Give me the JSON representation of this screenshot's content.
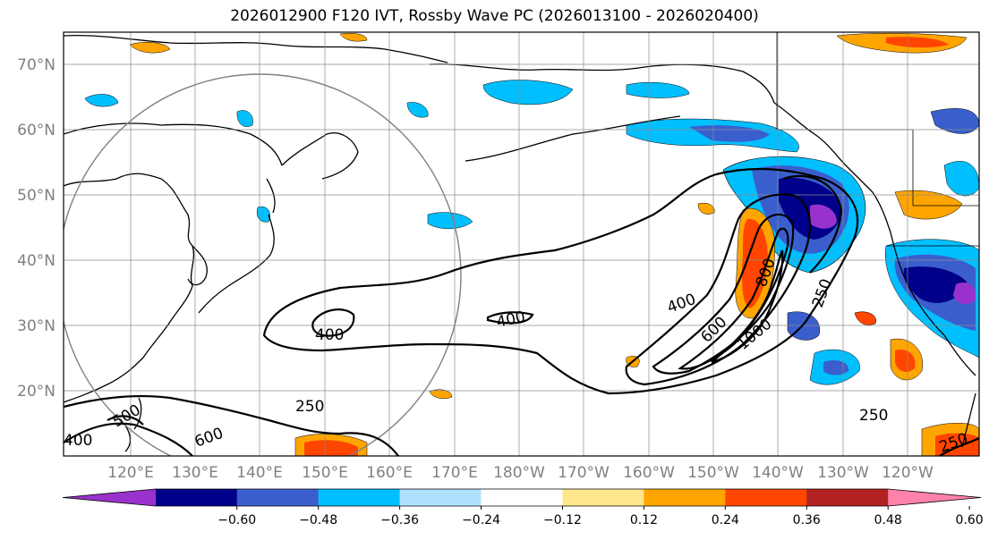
{
  "title": "2026012900 F120 IVT, Rossby Wave PC (2026013100 - 2026020400)",
  "lat_labels": [
    "70°N",
    "60°N",
    "50°N",
    "40°N",
    "30°N",
    "20°N"
  ],
  "lon_labels": [
    "120°E",
    "130°E",
    "140°E",
    "150°E",
    "160°E",
    "170°E",
    "180°W",
    "170°W",
    "160°W",
    "150°W",
    "140°W",
    "130°W",
    "120°W"
  ],
  "colorbar": {
    "colors": [
      "#9932cc",
      "#00008b",
      "#3a5fcd",
      "#00bfff",
      "#b0e2ff",
      "#ffffff",
      "#ffe68a",
      "#ffa500",
      "#ff4500",
      "#b22222",
      "#ff82ab"
    ],
    "tick_labels": [
      "−0.60",
      "−0.48",
      "−0.36",
      "−0.24",
      "−0.12",
      "0.12",
      "0.24",
      "0.36",
      "0.48",
      "0.60"
    ]
  },
  "contour_labels": [
    "400",
    "400",
    "400",
    "600",
    "800",
    "1000",
    "250",
    "250",
    "250",
    "600",
    "500",
    "400",
    "250"
  ]
}
